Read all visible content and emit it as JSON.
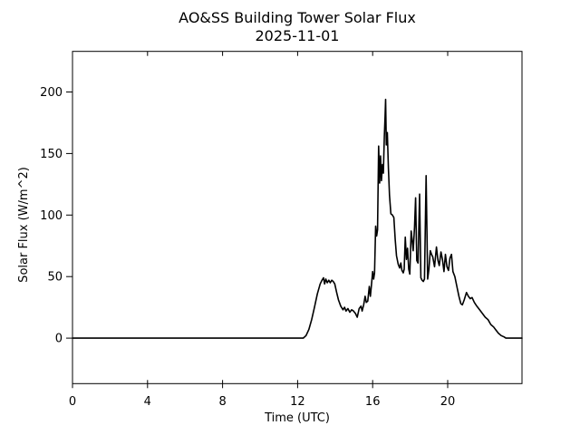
{
  "figure": {
    "title": "AO&SS Building Tower Solar Flux",
    "subtitle": "2025-11-01"
  },
  "chart_data": {
    "type": "line",
    "title": "AO&SS Building Tower Solar Flux",
    "subtitle": "2025-11-01",
    "xlabel": "Time (UTC)",
    "ylabel": "Solar Flux (W/m^2)",
    "xlim": [
      0,
      23.96
    ],
    "ylim": [
      -37,
      233
    ],
    "xticks": [
      0,
      4,
      8,
      12,
      16,
      20
    ],
    "yticks": [
      0,
      50,
      100,
      150,
      200
    ],
    "grid": false,
    "legend_position": "none",
    "line_color": "#000000",
    "background_color": "#ffffff",
    "series": [
      {
        "name": "solar_flux",
        "points": [
          [
            0,
            0
          ],
          [
            1,
            0
          ],
          [
            2,
            0
          ],
          [
            3,
            0
          ],
          [
            4,
            0
          ],
          [
            5,
            0
          ],
          [
            6,
            0
          ],
          [
            7,
            0
          ],
          [
            8,
            0
          ],
          [
            9,
            0
          ],
          [
            10,
            0
          ],
          [
            11,
            0
          ],
          [
            12,
            0
          ],
          [
            12.3,
            0
          ],
          [
            12.45,
            2
          ],
          [
            12.6,
            7
          ],
          [
            12.75,
            15
          ],
          [
            12.9,
            25
          ],
          [
            13.05,
            36
          ],
          [
            13.2,
            44
          ],
          [
            13.3,
            47
          ],
          [
            13.38,
            49
          ],
          [
            13.44,
            44
          ],
          [
            13.5,
            48
          ],
          [
            13.58,
            45
          ],
          [
            13.66,
            47
          ],
          [
            13.74,
            45
          ],
          [
            13.82,
            47
          ],
          [
            13.9,
            46
          ],
          [
            13.98,
            44
          ],
          [
            14.08,
            37
          ],
          [
            14.18,
            31
          ],
          [
            14.3,
            26
          ],
          [
            14.42,
            23
          ],
          [
            14.5,
            25
          ],
          [
            14.58,
            22
          ],
          [
            14.68,
            24
          ],
          [
            14.78,
            21
          ],
          [
            14.88,
            23
          ],
          [
            14.98,
            22
          ],
          [
            15.08,
            20
          ],
          [
            15.18,
            17
          ],
          [
            15.28,
            24
          ],
          [
            15.38,
            26
          ],
          [
            15.44,
            22
          ],
          [
            15.52,
            27
          ],
          [
            15.6,
            34
          ],
          [
            15.66,
            29
          ],
          [
            15.74,
            30
          ],
          [
            15.82,
            42
          ],
          [
            15.88,
            34
          ],
          [
            15.94,
            44
          ],
          [
            16.0,
            54
          ],
          [
            16.05,
            48
          ],
          [
            16.1,
            53
          ],
          [
            16.16,
            91
          ],
          [
            16.21,
            83
          ],
          [
            16.26,
            88
          ],
          [
            16.32,
            156
          ],
          [
            16.37,
            126
          ],
          [
            16.42,
            148
          ],
          [
            16.47,
            128
          ],
          [
            16.52,
            141
          ],
          [
            16.57,
            134
          ],
          [
            16.62,
            164
          ],
          [
            16.66,
            180
          ],
          [
            16.69,
            194
          ],
          [
            16.73,
            157
          ],
          [
            16.78,
            167
          ],
          [
            16.84,
            138
          ],
          [
            16.9,
            116
          ],
          [
            16.97,
            101
          ],
          [
            17.05,
            100
          ],
          [
            17.13,
            98
          ],
          [
            17.2,
            80
          ],
          [
            17.27,
            67
          ],
          [
            17.36,
            60
          ],
          [
            17.44,
            57
          ],
          [
            17.5,
            61
          ],
          [
            17.56,
            55
          ],
          [
            17.63,
            53
          ],
          [
            17.68,
            56
          ],
          [
            17.74,
            82
          ],
          [
            17.8,
            64
          ],
          [
            17.86,
            73
          ],
          [
            17.92,
            56
          ],
          [
            17.98,
            52
          ],
          [
            18.05,
            87
          ],
          [
            18.11,
            79
          ],
          [
            18.16,
            71
          ],
          [
            18.23,
            90
          ],
          [
            18.29,
            114
          ],
          [
            18.35,
            63
          ],
          [
            18.42,
            61
          ],
          [
            18.5,
            117
          ],
          [
            18.57,
            49
          ],
          [
            18.63,
            47
          ],
          [
            18.7,
            46
          ],
          [
            18.76,
            48
          ],
          [
            18.85,
            132
          ],
          [
            18.93,
            48
          ],
          [
            19.0,
            56
          ],
          [
            19.07,
            71
          ],
          [
            19.14,
            68
          ],
          [
            19.2,
            66
          ],
          [
            19.3,
            58
          ],
          [
            19.4,
            74
          ],
          [
            19.48,
            63
          ],
          [
            19.55,
            59
          ],
          [
            19.64,
            70
          ],
          [
            19.72,
            64
          ],
          [
            19.8,
            54
          ],
          [
            19.88,
            68
          ],
          [
            19.96,
            58
          ],
          [
            20.04,
            55
          ],
          [
            20.12,
            65
          ],
          [
            20.2,
            68
          ],
          [
            20.28,
            54
          ],
          [
            20.38,
            50
          ],
          [
            20.5,
            41
          ],
          [
            20.6,
            34
          ],
          [
            20.7,
            28
          ],
          [
            20.78,
            27
          ],
          [
            20.88,
            31
          ],
          [
            21.0,
            37
          ],
          [
            21.1,
            34
          ],
          [
            21.2,
            32
          ],
          [
            21.3,
            33
          ],
          [
            21.42,
            29
          ],
          [
            21.55,
            26
          ],
          [
            21.7,
            23
          ],
          [
            21.85,
            20
          ],
          [
            22.0,
            17
          ],
          [
            22.15,
            15
          ],
          [
            22.3,
            11
          ],
          [
            22.45,
            9
          ],
          [
            22.55,
            7
          ],
          [
            22.7,
            4
          ],
          [
            22.85,
            2
          ],
          [
            23.0,
            1
          ],
          [
            23.1,
            0
          ],
          [
            23.5,
            0
          ],
          [
            23.96,
            0
          ]
        ]
      }
    ]
  }
}
